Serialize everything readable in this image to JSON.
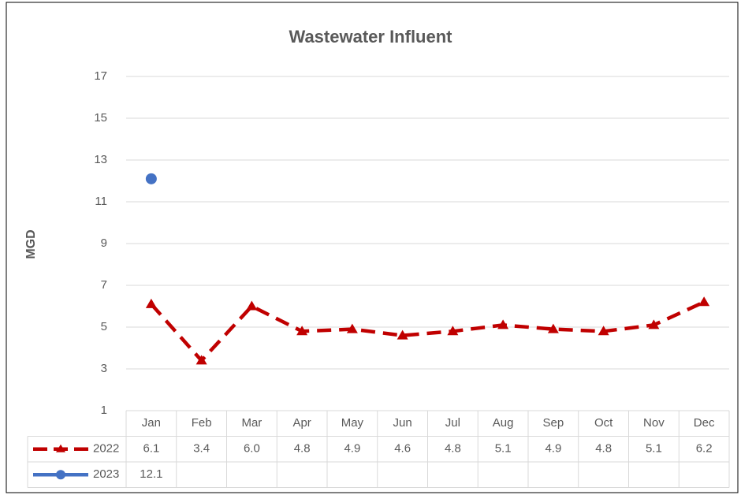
{
  "chart_data": {
    "type": "line",
    "title": "Wastewater Influent",
    "y_label": "MGD",
    "categories": [
      "Jan",
      "Feb",
      "Mar",
      "Apr",
      "May",
      "Jun",
      "Jul",
      "Aug",
      "Sep",
      "Oct",
      "Nov",
      "Dec"
    ],
    "series": [
      {
        "name": "2022",
        "color": "#c00000",
        "line_style": "dashed",
        "marker": "triangle",
        "values": [
          6.1,
          3.4,
          6.0,
          4.8,
          4.9,
          4.6,
          4.8,
          5.1,
          4.9,
          4.8,
          5.1,
          6.2
        ],
        "value_labels": [
          "6.1",
          "3.4",
          "6.0",
          "4.8",
          "4.9",
          "4.6",
          "4.8",
          "5.1",
          "4.9",
          "4.8",
          "5.1",
          "6.2"
        ]
      },
      {
        "name": "2023",
        "color": "#4472c4",
        "line_style": "solid",
        "marker": "circle",
        "values": [
          12.1,
          null,
          null,
          null,
          null,
          null,
          null,
          null,
          null,
          null,
          null,
          null
        ],
        "value_labels": [
          "12.1",
          null,
          null,
          null,
          null,
          null,
          null,
          null,
          null,
          null,
          null,
          null
        ]
      }
    ],
    "ylim": [
      1,
      17
    ],
    "yticks": [
      1,
      3,
      5,
      7,
      9,
      11,
      13,
      15,
      17
    ],
    "grid": true,
    "data_table": true
  }
}
